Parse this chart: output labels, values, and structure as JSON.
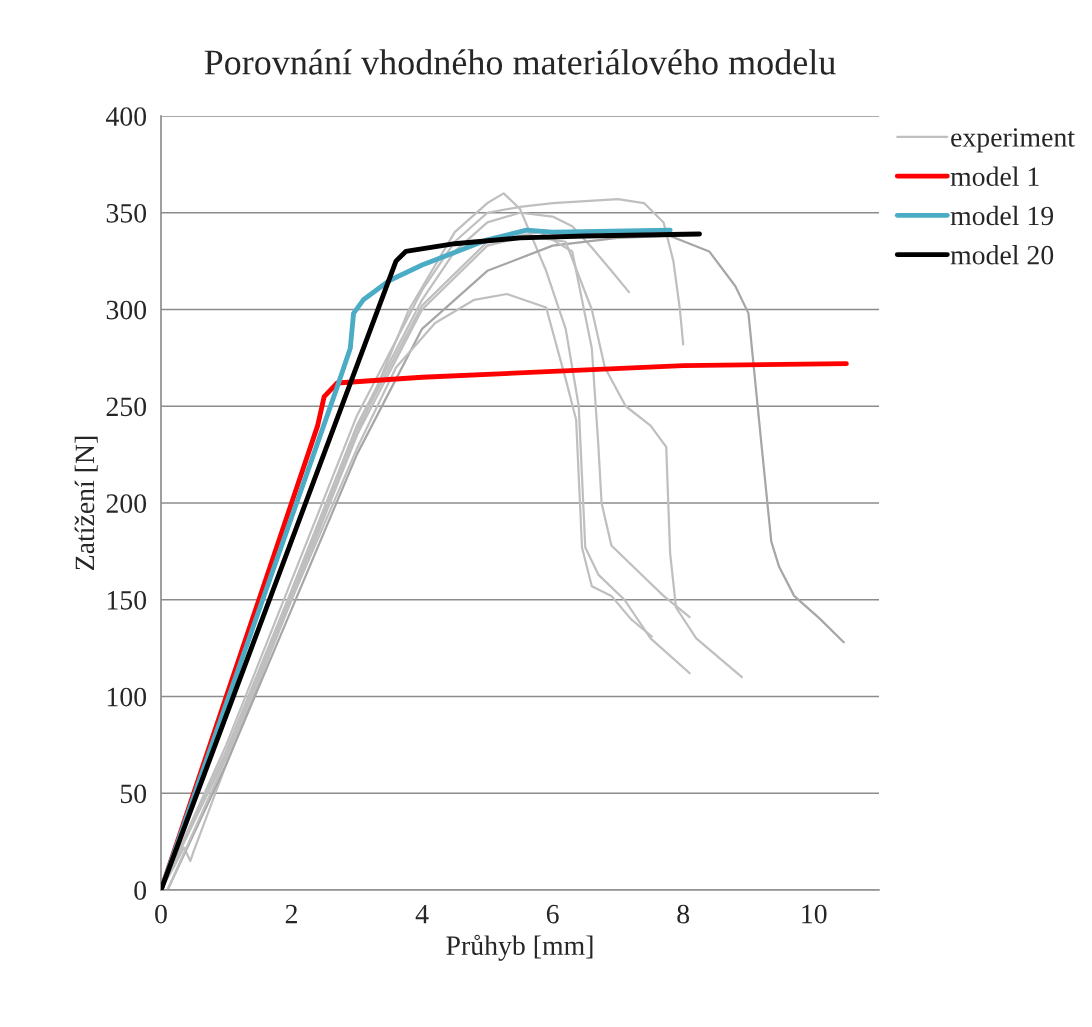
{
  "chart_data": {
    "type": "line",
    "title": "Porovnání vhodného materiálového modelu",
    "xlabel": "Průhyb [mm]",
    "ylabel": "Zatížení [N]",
    "xlim": [
      0,
      11
    ],
    "xticks": [
      0,
      2,
      4,
      6,
      8,
      10
    ],
    "ylim": [
      0,
      400
    ],
    "yticks": [
      0,
      50,
      100,
      150,
      200,
      250,
      300,
      350,
      400
    ],
    "grid": "y",
    "legend": "top right",
    "marker": "none",
    "line_style": "solid",
    "series": [
      {
        "name": "experiment",
        "color": "#bfbfbf",
        "x": [
          0,
          0.2,
          0.35,
          0.45,
          0.5,
          1,
          2,
          3,
          3.8,
          4.5,
          5.0,
          5.25,
          5.5,
          5.9,
          6.2,
          6.4,
          6.5,
          6.7,
          7.1,
          7.5,
          8.1
        ],
        "values": [
          0,
          12,
          22,
          15,
          20,
          65,
          150,
          235,
          300,
          340,
          355,
          360,
          352,
          320,
          290,
          250,
          177,
          163,
          150,
          130,
          112
        ]
      },
      {
        "color": "#bfbfbf",
        "x": [
          0,
          1,
          2,
          3,
          4,
          4.5,
          5,
          5.5,
          6,
          6.5,
          7,
          7.4,
          7.7,
          7.85,
          7.95,
          8.0
        ],
        "values": [
          0,
          75,
          160,
          245,
          310,
          335,
          350,
          353,
          355,
          356,
          357,
          355,
          345,
          325,
          300,
          282
        ]
      },
      {
        "color": "#bfbfbf",
        "x": [
          0,
          1,
          2,
          3,
          4,
          4.5,
          5,
          5.5,
          6,
          6.3,
          6.6,
          6.9,
          7.17
        ],
        "values": [
          0,
          72,
          155,
          240,
          305,
          330,
          345,
          350,
          348,
          343,
          332,
          320,
          309
        ]
      },
      {
        "color": "#a6a6a6",
        "x": [
          0.1,
          1,
          2,
          3,
          4,
          5,
          6,
          7,
          7.8,
          8.4,
          8.8,
          9.0,
          9.2,
          9.35,
          9.47,
          9.7,
          10.1,
          10.46
        ],
        "values": [
          0,
          65,
          145,
          225,
          290,
          320,
          333,
          337,
          338,
          330,
          312,
          298,
          230,
          180,
          167,
          152,
          140,
          128
        ]
      },
      {
        "color": "#bfbfbf",
        "x": [
          0.1,
          1,
          2,
          3,
          3.6,
          4.2,
          4.8,
          5.3,
          5.9,
          6.2,
          6.36,
          6.45,
          6.6,
          6.9,
          7.2,
          7.52
        ],
        "values": [
          0,
          68,
          150,
          228,
          270,
          293,
          305,
          308,
          301,
          264,
          243,
          177,
          157,
          152,
          140,
          131
        ]
      },
      {
        "color": "#bfbfbf",
        "x": [
          0,
          1,
          2,
          3,
          4,
          5,
          5.6,
          6.2,
          6.6,
          6.8,
          7.12,
          7.5,
          7.74,
          7.8,
          7.89,
          8.2,
          8.9
        ],
        "values": [
          0,
          70,
          152,
          235,
          300,
          333,
          338,
          335,
          300,
          270,
          250,
          240,
          229,
          174,
          146,
          130,
          110
        ]
      },
      {
        "color": "#bfbfbf",
        "x": [
          0,
          1,
          2,
          3,
          4,
          5,
          5.8,
          6.3,
          6.6,
          6.7,
          6.75,
          6.9,
          7.3,
          7.7,
          8.1
        ],
        "values": [
          0,
          70,
          153,
          238,
          302,
          335,
          340,
          330,
          280,
          230,
          200,
          178,
          165,
          152,
          141
        ]
      },
      {
        "name": "model 1",
        "color": "#ff0000",
        "x": [
          0,
          2.4,
          2.5,
          2.7,
          4,
          6,
          8,
          10.5
        ],
        "values": [
          0,
          240,
          255,
          262,
          265,
          268,
          271,
          272
        ]
      },
      {
        "name": "model 19",
        "color": "#4bacc6",
        "x": [
          0,
          2.7,
          2.9,
          2.95,
          3.1,
          3.5,
          4,
          5,
          5.6,
          6,
          7.8
        ],
        "values": [
          0,
          260,
          280,
          298,
          305,
          315,
          323,
          336,
          341,
          340,
          341
        ]
      },
      {
        "name": "model 20",
        "color": "#000000",
        "x": [
          0,
          3.6,
          3.75,
          4.5,
          5.5,
          6.5,
          8.25
        ],
        "values": [
          0,
          325,
          330,
          334,
          337,
          338,
          339
        ]
      }
    ]
  }
}
